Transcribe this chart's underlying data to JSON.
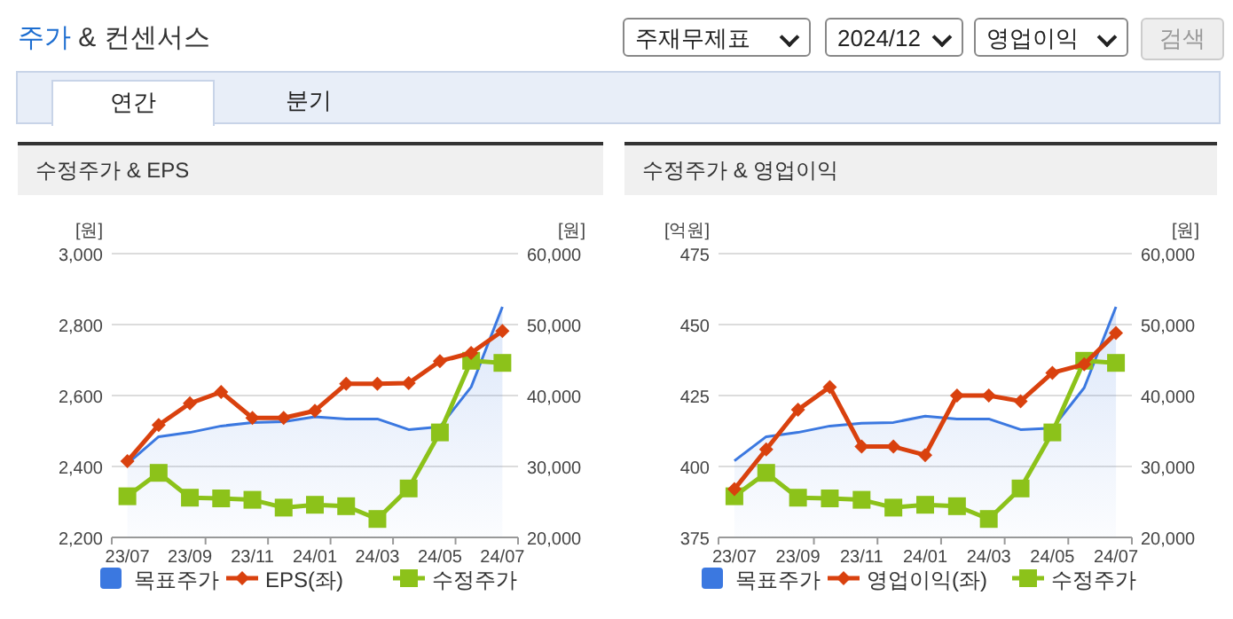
{
  "chart_data": [
    {
      "type": "other",
      "title": "주가 & 컨센서스",
      "annotations": [
        "주재무제표",
        "2024/12",
        "영업이익",
        "검색",
        "연간",
        "분기"
      ]
    },
    {
      "type": "line",
      "title": "수정주가 & EPS",
      "ylabel": "[원]",
      "y2label": "[원]",
      "categories": [
        "23/07",
        null,
        "23/09",
        null,
        "23/11",
        null,
        "24/01",
        null,
        "24/03",
        null,
        "24/05",
        null,
        "24/07"
      ],
      "series": [
        {
          "name": "목표주가",
          "type": "area",
          "axis": "y2",
          "marker": "none",
          "color": "#3b78e0",
          "values": [
            30400,
            34200,
            34800,
            35700,
            36200,
            36300,
            37000,
            36700,
            36700,
            35200,
            35600,
            41200,
            52500
          ]
        },
        {
          "name": "EPS(좌)",
          "type": "line",
          "axis": "y",
          "marker": "diamond",
          "color": "#d9410e",
          "values": [
            2415,
            2517,
            2578,
            2610,
            2537,
            2537,
            2557,
            2633,
            2633,
            2635,
            2697,
            2720,
            2782
          ]
        },
        {
          "name": "수정주가",
          "type": "line",
          "axis": "y2",
          "marker": "square",
          "color": "#8cc21a",
          "values": [
            25800,
            29100,
            25600,
            25500,
            25300,
            24200,
            24600,
            24400,
            22600,
            26900,
            34800,
            44900,
            44600
          ]
        }
      ],
      "ylim": [
        2200,
        3000
      ],
      "yticks": [
        {
          "value": 2200,
          "label": "2,200"
        },
        {
          "value": 2400,
          "label": "2,400"
        },
        {
          "value": 2600,
          "label": "2,600"
        },
        {
          "value": 2800,
          "label": "2,800"
        },
        {
          "value": 3000,
          "label": "3,000"
        }
      ],
      "y2lim": [
        20000,
        60000
      ],
      "y2ticks": [
        {
          "value": 20000,
          "label": "20,000"
        },
        {
          "value": 30000,
          "label": "30,000"
        },
        {
          "value": 40000,
          "label": "40,000"
        },
        {
          "value": 50000,
          "label": "50,000"
        },
        {
          "value": 60000,
          "label": "60,000"
        }
      ],
      "grid": "y",
      "legend": "bottom",
      "line_style": "solid"
    },
    {
      "type": "line",
      "title": "수정주가 & 영업이익",
      "ylabel": "[억원]",
      "y2label": "[원]",
      "categories": [
        "23/07",
        null,
        "23/09",
        null,
        "23/11",
        null,
        "24/01",
        null,
        "24/03",
        null,
        "24/05",
        null,
        "24/07"
      ],
      "series": [
        {
          "name": "목표주가",
          "type": "area",
          "axis": "y2",
          "marker": "none",
          "color": "#3b78e0",
          "values": [
            30800,
            34200,
            34800,
            35700,
            36100,
            36200,
            37100,
            36700,
            36700,
            35200,
            35400,
            41100,
            52500
          ]
        },
        {
          "name": "영업이익(좌)",
          "type": "line",
          "axis": "y",
          "marker": "diamond",
          "color": "#d9410e",
          "values": [
            392,
            406,
            420,
            428,
            407,
            407,
            404,
            425,
            425,
            423,
            433,
            436,
            447
          ]
        },
        {
          "name": "수정주가",
          "type": "line",
          "axis": "y2",
          "marker": "square",
          "color": "#8cc21a",
          "values": [
            25800,
            29100,
            25600,
            25500,
            25300,
            24200,
            24600,
            24400,
            22600,
            26900,
            34800,
            44900,
            44600
          ]
        }
      ],
      "ylim": [
        375,
        475
      ],
      "yticks": [
        375,
        400,
        425,
        450,
        475
      ],
      "y2lim": [
        20000,
        60000
      ],
      "y2ticks": [
        {
          "value": 20000,
          "label": "20,000"
        },
        {
          "value": 30000,
          "label": "30,000"
        },
        {
          "value": 40000,
          "label": "40,000"
        },
        {
          "value": 50000,
          "label": "50,000"
        },
        {
          "value": 60000,
          "label": "60,000"
        }
      ],
      "grid": "y",
      "legend": "bottom",
      "line_style": "solid"
    }
  ]
}
